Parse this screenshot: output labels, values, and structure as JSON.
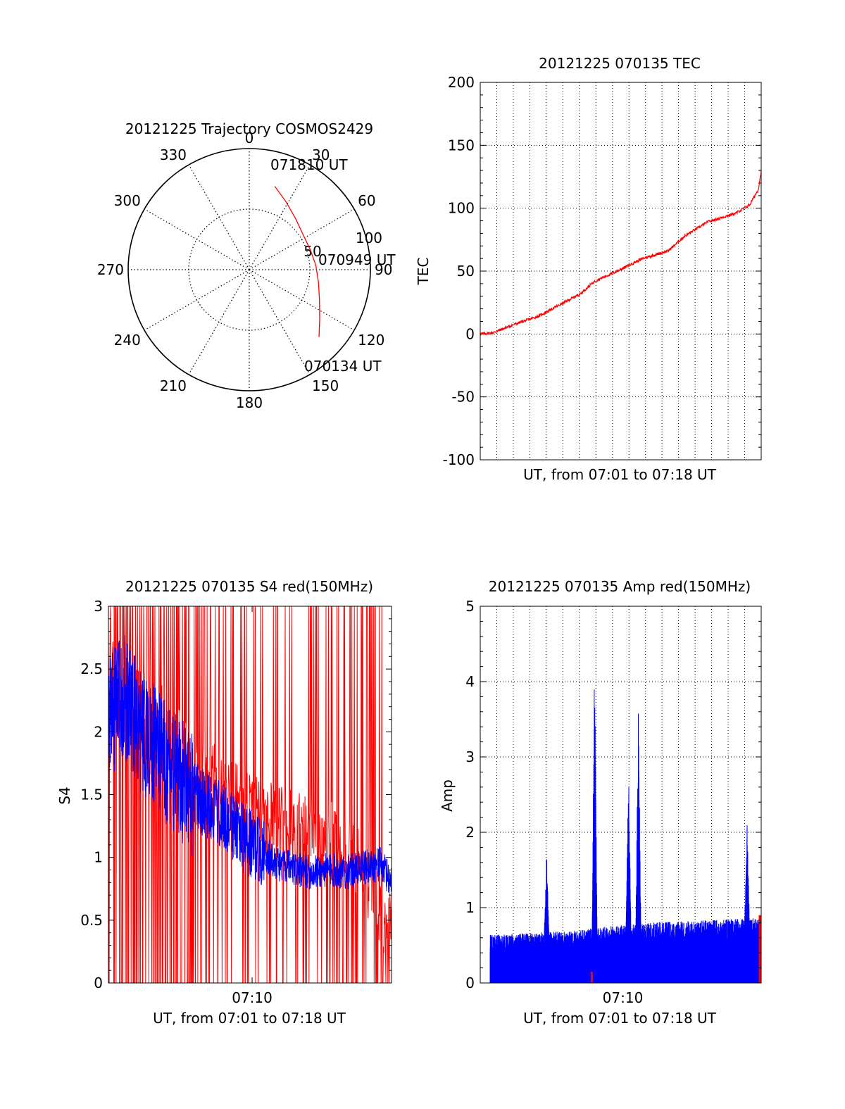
{
  "colors": {
    "red": "#ff0000",
    "blue": "#0000ff",
    "axis": "#000000",
    "grid": "#000000",
    "background": "#ffffff"
  },
  "chart_data": [
    {
      "id": "trajectory",
      "type": "polar",
      "title": "20121225 Trajectory COSMOS2429",
      "azimuth_labels": [
        "0",
        "30",
        "60",
        "90",
        "120",
        "150",
        "180",
        "210",
        "240",
        "270",
        "300",
        "330"
      ],
      "radial_ticks": [
        {
          "value": 50,
          "label": "50"
        },
        {
          "value": 100,
          "label": "100"
        }
      ],
      "rmax": 100,
      "grid": true,
      "series": [
        {
          "color": "red",
          "points": [
            {
              "az": 17,
              "r": 72
            },
            {
              "az": 28,
              "r": 64
            },
            {
              "az": 42,
              "r": 57
            },
            {
              "az": 57,
              "r": 53
            },
            {
              "az": 72,
              "r": 53
            },
            {
              "az": 86,
              "r": 55
            },
            {
              "az": 100,
              "r": 58
            },
            {
              "az": 113,
              "r": 63
            },
            {
              "az": 125,
              "r": 71
            },
            {
              "az": 134,
              "r": 80
            }
          ]
        }
      ],
      "annotations": [
        {
          "label": "071810 UT",
          "at": "end"
        },
        {
          "label": "070949 UT",
          "at": "middle"
        },
        {
          "label": "070134 UT",
          "at": "start"
        }
      ]
    },
    {
      "id": "tec",
      "type": "line",
      "title": "20121225 070135 TEC",
      "xlabel": "UT, from 07:01 to 07:18 UT",
      "ylabel": "TEC",
      "xlim": [
        "07:01:35",
        "07:18:10"
      ],
      "ylim": [
        -100,
        200
      ],
      "y_ticks": [
        -100,
        -50,
        0,
        50,
        100,
        150,
        200
      ],
      "x_ticks": [],
      "grid": true,
      "series": [
        {
          "color": "red",
          "x": [
            "07:01:35",
            "07:02:20",
            "07:03:40",
            "07:05:00",
            "07:06:40",
            "07:07:30",
            "07:08:20",
            "07:09:40",
            "07:11:10",
            "07:12:40",
            "07:13:40",
            "07:15:00",
            "07:16:40",
            "07:17:30",
            "07:18:00",
            "07:18:10"
          ],
          "y": [
            0,
            1,
            8,
            14,
            26,
            32,
            42,
            50,
            60,
            66,
            78,
            89,
            96,
            103,
            115,
            130
          ]
        }
      ]
    },
    {
      "id": "s4",
      "type": "line",
      "title": "20121225 070135 S4 red(150MHz)",
      "xlabel": "UT, from 07:01 to 07:18 UT",
      "ylabel": "S4",
      "xlim": [
        "07:01:35",
        "07:18:10"
      ],
      "ylim": [
        0,
        3
      ],
      "y_ticks": [
        "0",
        "0.5",
        "1",
        "1.5",
        "2",
        "2.5",
        "3"
      ],
      "x_ticks": [
        "07:10"
      ],
      "grid": false,
      "series": [
        {
          "color": "red",
          "style": "dense-spikes",
          "x": [
            "07:01:35",
            "07:04:00",
            "07:06:20",
            "07:08:40",
            "07:11:00",
            "07:13:20",
            "07:15:40",
            "07:17:20",
            "07:18:10"
          ],
          "y": [
            2.5,
            2.2,
            1.8,
            1.5,
            1.3,
            1.2,
            1.1,
            0.6,
            0.4
          ]
        },
        {
          "color": "blue",
          "style": "noisy-line",
          "x": [
            "07:01:35",
            "07:02:30",
            "07:03:30",
            "07:04:30",
            "07:05:30",
            "07:06:30",
            "07:07:30",
            "07:08:30",
            "07:09:30",
            "07:10:30",
            "07:11:30",
            "07:12:30",
            "07:13:30",
            "07:14:30",
            "07:15:30",
            "07:16:30",
            "07:17:30",
            "07:18:10"
          ],
          "y": [
            2.1,
            2.3,
            2.0,
            1.85,
            1.65,
            1.5,
            1.4,
            1.3,
            1.15,
            1.05,
            0.95,
            0.9,
            0.88,
            0.9,
            0.88,
            0.92,
            0.95,
            0.8
          ]
        }
      ]
    },
    {
      "id": "amp",
      "type": "line",
      "title": "20121225 070135 Amp red(150MHz)",
      "xlabel": "UT, from 07:01 to 07:18 UT",
      "ylabel": "Amp",
      "xlim": [
        "07:01:35",
        "07:18:10"
      ],
      "ylim": [
        0,
        5
      ],
      "y_ticks": [
        "0",
        "1",
        "2",
        "3",
        "4",
        "5"
      ],
      "x_ticks": [
        "07:10"
      ],
      "grid": true,
      "series": [
        {
          "color": "blue",
          "style": "noisy-fill",
          "baseline": [
            {
              "x": "07:01:35",
              "y": 0.55
            },
            {
              "x": "07:07:00",
              "y": 0.6
            },
            {
              "x": "07:09:00",
              "y": 0.65
            },
            {
              "x": "07:12:00",
              "y": 0.7
            },
            {
              "x": "07:18:10",
              "y": 0.75
            }
          ],
          "peaks": [
            {
              "x": "07:05:30",
              "y": 1.75
            },
            {
              "x": "07:08:20",
              "y": 4.58
            },
            {
              "x": "07:10:20",
              "y": 2.95
            },
            {
              "x": "07:10:55",
              "y": 3.8
            },
            {
              "x": "07:17:20",
              "y": 2.15
            }
          ]
        },
        {
          "color": "red",
          "style": "markers",
          "x": [
            "07:08:10",
            "07:18:05"
          ],
          "y": [
            0.15,
            0.9
          ]
        }
      ]
    }
  ]
}
